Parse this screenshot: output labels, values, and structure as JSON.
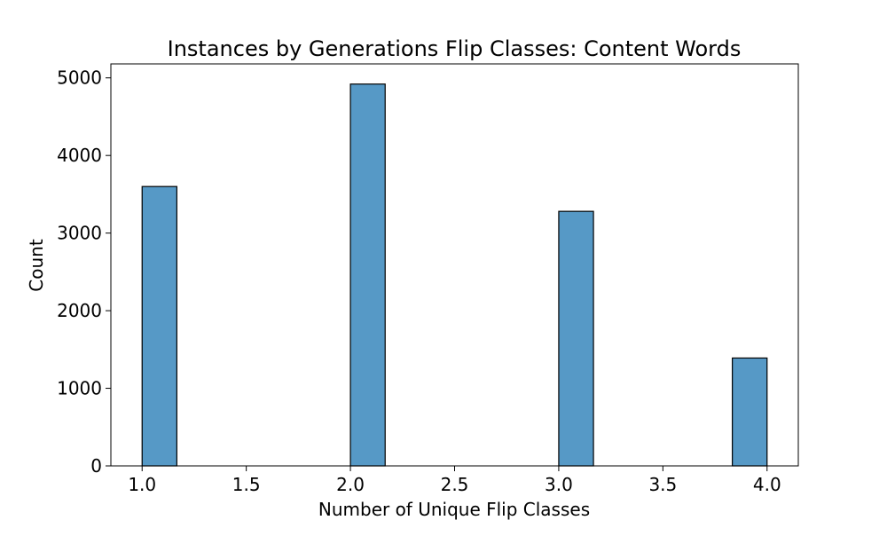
{
  "chart_data": {
    "type": "bar",
    "title": "Instances by Generations Flip Classes: Content Words",
    "xlabel": "Number of Unique Flip Classes",
    "ylabel": "Count",
    "bins": [
      {
        "x_start": 1.0,
        "x_end": 1.1667,
        "count": 3600
      },
      {
        "x_start": 2.0,
        "x_end": 2.1667,
        "count": 4920
      },
      {
        "x_start": 3.0,
        "x_end": 3.1667,
        "count": 3280
      },
      {
        "x_start": 3.8333,
        "x_end": 4.0,
        "count": 1390
      }
    ],
    "xlim": [
      0.85,
      4.15
    ],
    "ylim": [
      0,
      5180
    ],
    "xticks": [
      "1.0",
      "1.5",
      "2.0",
      "2.5",
      "3.0",
      "3.5",
      "4.0"
    ],
    "yticks": [
      "0",
      "1000",
      "2000",
      "3000",
      "4000",
      "5000"
    ],
    "grid": false,
    "bar_color": "#5699c6",
    "edge_color": "#000000"
  }
}
